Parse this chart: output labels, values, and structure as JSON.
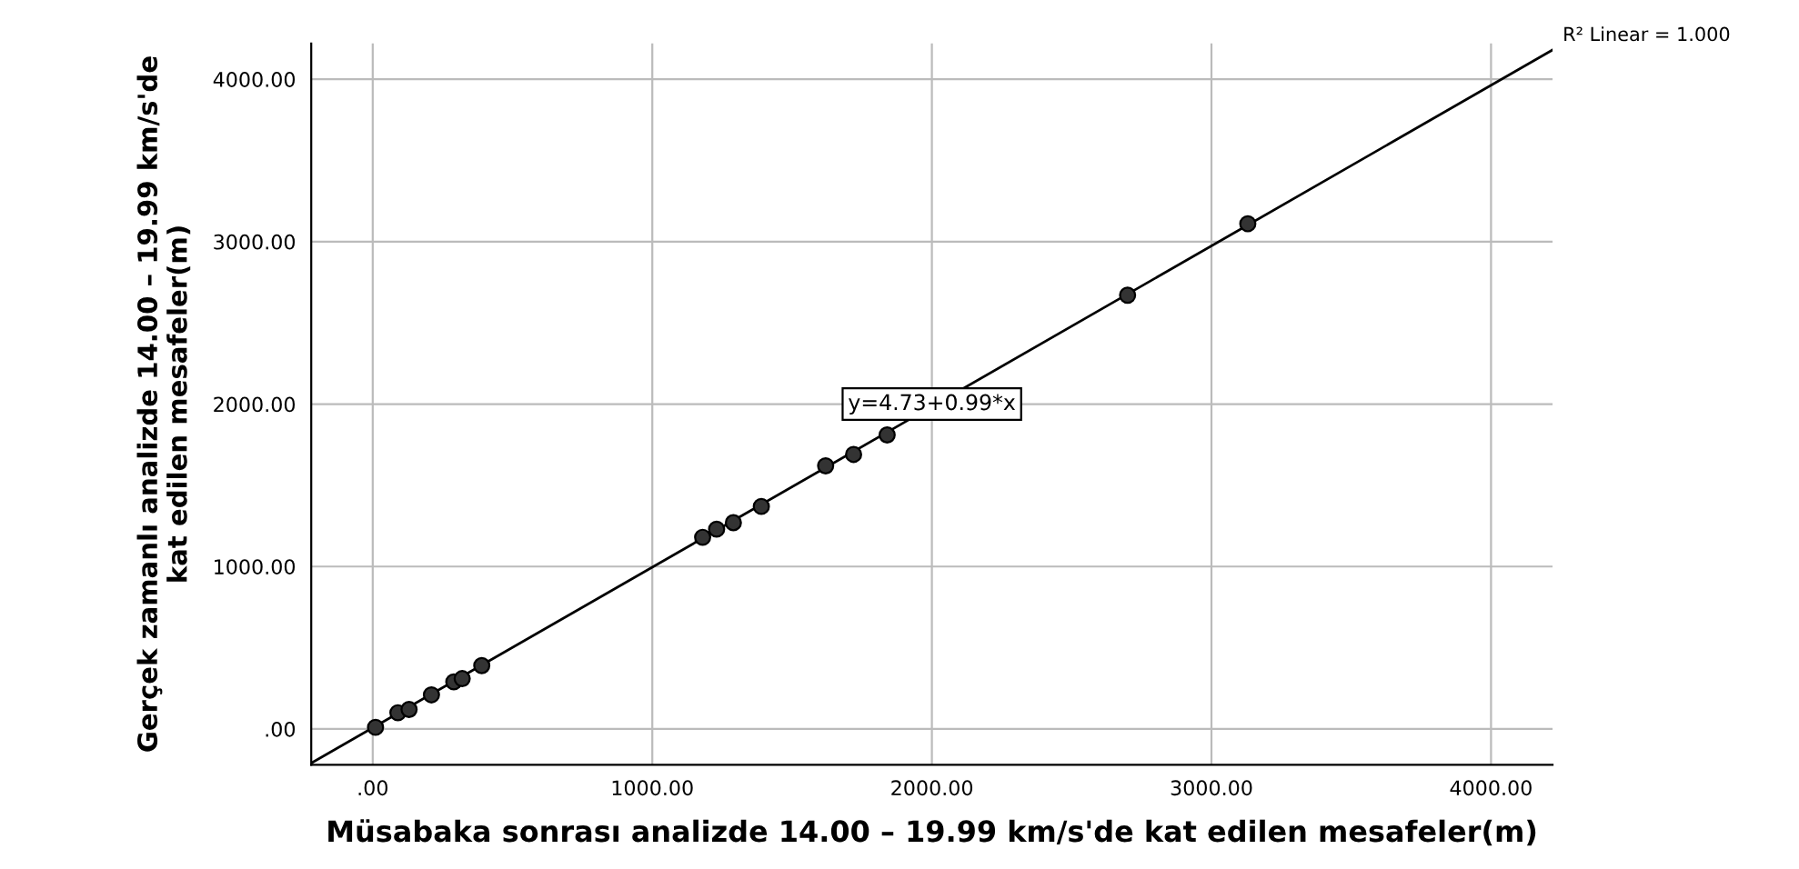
{
  "chart_data": {
    "type": "scatter",
    "xlabel": "Müsabaka sonrası analizde 14.00 – 19.99 km/s'de kat edilen mesafeler(m)",
    "ylabel": "Gerçek zamanlı analizde 14.00 – 19.99 km/s'de\nkat edilen mesafeler(m)",
    "xlim": [
      -220,
      4220
    ],
    "ylim": [
      -220,
      4220
    ],
    "xticks": [
      {
        "value": 0,
        "label": ".00"
      },
      {
        "value": 1000,
        "label": "1000.00"
      },
      {
        "value": 2000,
        "label": "2000.00"
      },
      {
        "value": 3000,
        "label": "3000.00"
      },
      {
        "value": 4000,
        "label": "4000.00"
      }
    ],
    "yticks": [
      {
        "value": 0,
        "label": ".00"
      },
      {
        "value": 1000,
        "label": "1000.00"
      },
      {
        "value": 2000,
        "label": "2000.00"
      },
      {
        "value": 3000,
        "label": "3000.00"
      },
      {
        "value": 4000,
        "label": "4000.00"
      }
    ],
    "grid": true,
    "marker": "circle",
    "series": [
      {
        "color": "#333333",
        "x": [
          10,
          90,
          130,
          210,
          290,
          320,
          390,
          1180,
          1230,
          1290,
          1390,
          1620,
          1720,
          1840,
          2700,
          3130
        ],
        "values": [
          10,
          100,
          120,
          210,
          290,
          310,
          390,
          1180,
          1230,
          1270,
          1370,
          1620,
          1690,
          1810,
          2670,
          3110
        ]
      },
      {
        "type": "line",
        "color": "#000000",
        "marker": "none",
        "x": [
          -220,
          4220
        ],
        "values": [
          -210,
          4180
        ]
      }
    ],
    "annotations": [
      {
        "text": "y=4.73+0.99*x",
        "x": 2000,
        "y": 2000
      },
      {
        "text": "R² Linear = 1.000",
        "x": 4220,
        "y": 4180
      }
    ]
  }
}
